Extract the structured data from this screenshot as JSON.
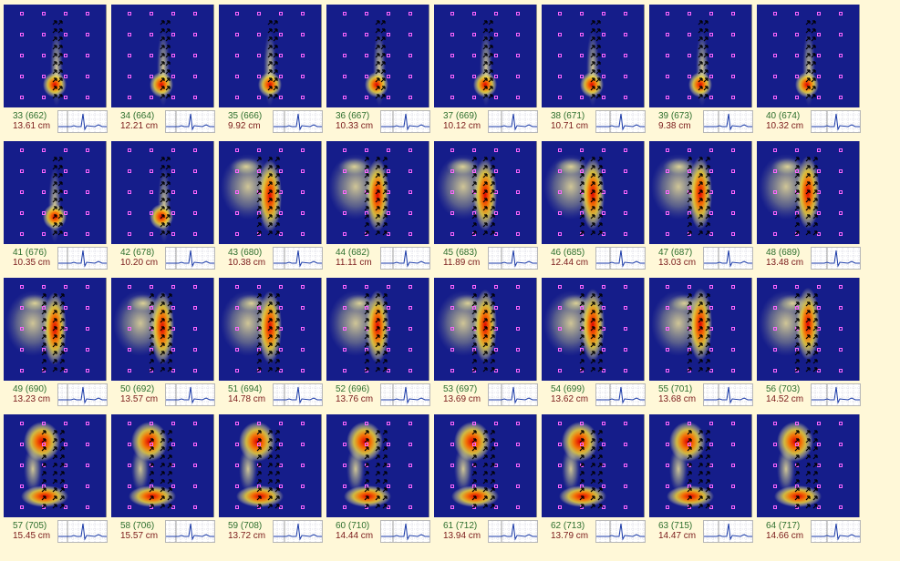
{
  "frames": [
    {
      "index": "33 (662)",
      "distance": "13.61 cm"
    },
    {
      "index": "34 (664)",
      "distance": "12.21 cm"
    },
    {
      "index": "35 (666)",
      "distance": "9.92 cm"
    },
    {
      "index": "36 (667)",
      "distance": "10.33 cm"
    },
    {
      "index": "37 (669)",
      "distance": "10.12 cm"
    },
    {
      "index": "38 (671)",
      "distance": "10.71 cm"
    },
    {
      "index": "39 (673)",
      "distance": "9.38 cm"
    },
    {
      "index": "40 (674)",
      "distance": "10.32 cm"
    },
    {
      "index": "41 (676)",
      "distance": "10.35 cm"
    },
    {
      "index": "42 (678)",
      "distance": "10.20 cm"
    },
    {
      "index": "43 (680)",
      "distance": "10.38 cm"
    },
    {
      "index": "44 (682)",
      "distance": "11.11 cm"
    },
    {
      "index": "45 (683)",
      "distance": "11.89 cm"
    },
    {
      "index": "46 (685)",
      "distance": "12.44 cm"
    },
    {
      "index": "47 (687)",
      "distance": "13.03 cm"
    },
    {
      "index": "48 (689)",
      "distance": "13.48 cm"
    },
    {
      "index": "49 (690)",
      "distance": "13.23 cm"
    },
    {
      "index": "50 (692)",
      "distance": "13.57 cm"
    },
    {
      "index": "51 (694)",
      "distance": "14.78 cm"
    },
    {
      "index": "52 (696)",
      "distance": "13.76 cm"
    },
    {
      "index": "53 (697)",
      "distance": "13.69 cm"
    },
    {
      "index": "54 (699)",
      "distance": "13.62 cm"
    },
    {
      "index": "55 (701)",
      "distance": "13.68 cm"
    },
    {
      "index": "56 (703)",
      "distance": "14.52 cm"
    },
    {
      "index": "57 (705)",
      "distance": "15.45 cm"
    },
    {
      "index": "58 (706)",
      "distance": "15.57 cm"
    },
    {
      "index": "59 (708)",
      "distance": "13.72 cm"
    },
    {
      "index": "60 (710)",
      "distance": "14.44 cm"
    },
    {
      "index": "61 (712)",
      "distance": "13.94 cm"
    },
    {
      "index": "62 (713)",
      "distance": "13.79 cm"
    },
    {
      "index": "63 (715)",
      "distance": "14.47 cm"
    },
    {
      "index": "64 (717)",
      "distance": "14.66 cm"
    }
  ],
  "colors": {
    "background": "#fff8d8",
    "map_background": "#151d8a",
    "electrode_marker": "#ff66ff",
    "vector_arrow": "#000000",
    "index_text": "#2e6f2e",
    "distance_text": "#7a1a1a",
    "ecg_trace": "#1a3aa8"
  }
}
